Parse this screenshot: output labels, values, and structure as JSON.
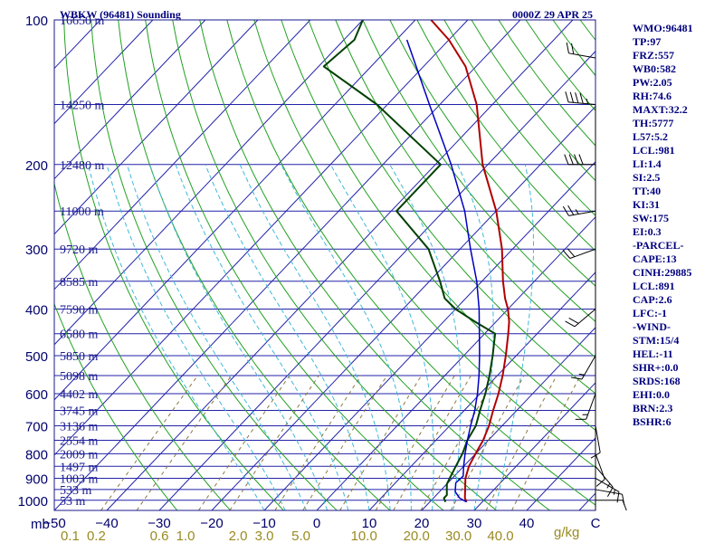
{
  "header": {
    "station": "WBKW (96481) Sounding",
    "time": "0000Z 29 APR 25"
  },
  "colors": {
    "isobar": "#2222aa",
    "isotherm": "#2222aa",
    "dry_adiabat": "#22a022",
    "moist_adiabat": "#40b8d8",
    "mixing_ratio": "#8a7a40",
    "temperature": "#b00000",
    "dewpoint": "#004000",
    "parcel": "#0000c0",
    "wind": "#000000"
  },
  "chart_data": {
    "type": "line",
    "title": "WBKW (96481) Sounding",
    "pressure_ticks": [
      100,
      200,
      300,
      400,
      500,
      600,
      700,
      800,
      900,
      1000
    ],
    "pressure_unit": "mb",
    "temperature_ticks": [
      -50,
      -40,
      -30,
      -20,
      -10,
      0,
      10,
      20,
      30,
      40
    ],
    "mixing_ratio_ticks": [
      {
        "label": "0.1",
        "t": -47
      },
      {
        "label": "0.2",
        "t": -42
      },
      {
        "label": "0.6",
        "t": -30
      },
      {
        "label": "1.0",
        "t": -25
      },
      {
        "label": "2.0",
        "t": -15
      },
      {
        "label": "3.0",
        "t": -10
      },
      {
        "label": "5.0",
        "t": -3
      },
      {
        "label": "10.0",
        "t": 9
      },
      {
        "label": "20.0",
        "t": 19
      },
      {
        "label": "30.0",
        "t": 27
      },
      {
        "label": "40.0",
        "t": 35
      }
    ],
    "mixing_ratio_unit": "g/kg",
    "heights": [
      {
        "p": 100,
        "label": "16650 m"
      },
      {
        "p": 150,
        "label": "14250 m"
      },
      {
        "p": 200,
        "label": "12480 m"
      },
      {
        "p": 250,
        "label": "11000 m"
      },
      {
        "p": 300,
        "label": "9720 m"
      },
      {
        "p": 350,
        "label": "8585 m"
      },
      {
        "p": 400,
        "label": "7590 m"
      },
      {
        "p": 450,
        "label": "6580 m"
      },
      {
        "p": 500,
        "label": "5850 m"
      },
      {
        "p": 550,
        "label": "5098 m"
      },
      {
        "p": 600,
        "label": "4402 m"
      },
      {
        "p": 650,
        "label": "3745 m"
      },
      {
        "p": 700,
        "label": "3136 m"
      },
      {
        "p": 750,
        "label": "2554 m"
      },
      {
        "p": 800,
        "label": "2009 m"
      },
      {
        "p": 850,
        "label": "1497 m"
      },
      {
        "p": 900,
        "label": "1003 m"
      },
      {
        "p": 950,
        "label": "533 m"
      },
      {
        "p": 1000,
        "label": "53 m"
      }
    ],
    "series": [
      {
        "key": "temperature",
        "points": [
          [
            1008,
            27
          ],
          [
            990,
            26
          ],
          [
            950,
            24.5
          ],
          [
            925,
            23.5
          ],
          [
            900,
            22.5
          ],
          [
            850,
            21
          ],
          [
            800,
            20
          ],
          [
            750,
            19
          ],
          [
            700,
            17.5
          ],
          [
            650,
            15.5
          ],
          [
            600,
            13.5
          ],
          [
            550,
            11
          ],
          [
            500,
            8
          ],
          [
            450,
            4.5
          ],
          [
            425,
            2.5
          ],
          [
            400,
            0
          ],
          [
            380,
            -2.5
          ],
          [
            350,
            -6
          ],
          [
            300,
            -12
          ],
          [
            250,
            -20
          ],
          [
            200,
            -31
          ],
          [
            150,
            -43
          ],
          [
            125,
            -52
          ],
          [
            110,
            -60
          ],
          [
            100,
            -67
          ]
        ]
      },
      {
        "key": "dewpoint",
        "points": [
          [
            1008,
            23
          ],
          [
            990,
            22
          ],
          [
            975,
            22
          ],
          [
            950,
            21
          ],
          [
            925,
            20
          ],
          [
            900,
            19.5
          ],
          [
            850,
            18.5
          ],
          [
            800,
            17.5
          ],
          [
            750,
            16
          ],
          [
            700,
            15
          ],
          [
            650,
            13
          ],
          [
            600,
            11
          ],
          [
            550,
            8.5
          ],
          [
            500,
            5.5
          ],
          [
            450,
            2
          ],
          [
            425,
            -4
          ],
          [
            400,
            -10
          ],
          [
            380,
            -14
          ],
          [
            350,
            -18
          ],
          [
            300,
            -26
          ],
          [
            250,
            -39
          ],
          [
            200,
            -39
          ],
          [
            150,
            -62
          ],
          [
            125,
            -79
          ],
          [
            110,
            -78
          ],
          [
            100,
            -80
          ]
        ]
      },
      {
        "key": "parcel",
        "points": [
          [
            1008,
            27
          ],
          [
            990,
            25
          ],
          [
            960,
            23
          ],
          [
            920,
            21.5
          ],
          [
            891,
            21.7
          ],
          [
            850,
            20
          ],
          [
            800,
            18
          ],
          [
            750,
            16
          ],
          [
            700,
            14
          ],
          [
            650,
            12
          ],
          [
            600,
            9.5
          ],
          [
            550,
            6.5
          ],
          [
            500,
            3
          ],
          [
            450,
            -1
          ],
          [
            400,
            -5.5
          ],
          [
            350,
            -11
          ],
          [
            300,
            -18
          ],
          [
            250,
            -26
          ],
          [
            200,
            -37
          ],
          [
            150,
            -52
          ],
          [
            110,
            -68
          ]
        ]
      }
    ],
    "wind_barbs": [
      {
        "p": 1000,
        "speed": 10,
        "dir": 90
      },
      {
        "p": 950,
        "speed": 10,
        "dir": 100
      },
      {
        "p": 900,
        "speed": 15,
        "dir": 120
      },
      {
        "p": 850,
        "speed": 15,
        "dir": 140
      },
      {
        "p": 800,
        "speed": 10,
        "dir": 160
      },
      {
        "p": 700,
        "speed": 10,
        "dir": 170
      },
      {
        "p": 600,
        "speed": 15,
        "dir": 200
      },
      {
        "p": 500,
        "speed": 15,
        "dir": 210
      },
      {
        "p": 400,
        "speed": 20,
        "dir": 230
      },
      {
        "p": 300,
        "speed": 20,
        "dir": 250
      },
      {
        "p": 250,
        "speed": 25,
        "dir": 260
      },
      {
        "p": 200,
        "speed": 40,
        "dir": 270
      },
      {
        "p": 150,
        "speed": 45,
        "dir": 275
      },
      {
        "p": 120,
        "speed": 20,
        "dir": 280
      }
    ]
  },
  "indices": [
    "WMO:96481",
    "TP:97",
    "FRZ:557",
    "WB0:582",
    "PW:2.05",
    "RH:74.6",
    "MAXT:32.2",
    "TH:5777",
    "L57:5.2",
    "LCL:981",
    "LI:1.4",
    "SI:2.5",
    "TT:40",
    "KI:31",
    "SW:175",
    "EI:0.3",
    "-PARCEL-",
    "CAPE:13",
    "CINH:29885",
    "LCL:891",
    "CAP:2.6",
    "LFC:-1",
    "-WIND-",
    "STM:15/4",
    "HEL:-11",
    "SHR+:0.0",
    "SRDS:168",
    "EHI:0.0",
    "BRN:2.3",
    "BSHR:6"
  ]
}
